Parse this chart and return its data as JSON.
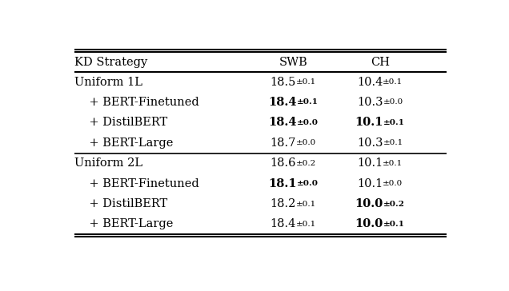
{
  "columns": [
    "KD Strategy",
    "SWB",
    "CH"
  ],
  "rows": [
    {
      "strategy": "Uniform 1L",
      "swb_main": "18.5",
      "swb_pm": "±0.1",
      "ch_main": "10.4",
      "ch_pm": "±0.1",
      "swb_bold_main": false,
      "swb_bold_pm": false,
      "ch_bold_main": false,
      "ch_bold_pm": false,
      "indent": false,
      "divider_before": false
    },
    {
      "strategy": "+ BERT-Finetuned",
      "swb_main": "18.4",
      "swb_pm": "±0.1",
      "ch_main": "10.3",
      "ch_pm": "±0.0",
      "swb_bold_main": true,
      "swb_bold_pm": true,
      "ch_bold_main": false,
      "ch_bold_pm": false,
      "indent": true,
      "divider_before": false
    },
    {
      "strategy": "+ DistilBERT",
      "swb_main": "18.4",
      "swb_pm": "±0.0",
      "ch_main": "10.1",
      "ch_pm": "±0.1",
      "swb_bold_main": true,
      "swb_bold_pm": true,
      "ch_bold_main": true,
      "ch_bold_pm": true,
      "indent": true,
      "divider_before": false
    },
    {
      "strategy": "+ BERT-Large",
      "swb_main": "18.7",
      "swb_pm": "±0.0",
      "ch_main": "10.3",
      "ch_pm": "±0.1",
      "swb_bold_main": false,
      "swb_bold_pm": false,
      "ch_bold_main": false,
      "ch_bold_pm": false,
      "indent": true,
      "divider_before": false
    },
    {
      "strategy": "Uniform 2L",
      "swb_main": "18.6",
      "swb_pm": "±0.2",
      "ch_main": "10.1",
      "ch_pm": "±0.1",
      "swb_bold_main": false,
      "swb_bold_pm": false,
      "ch_bold_main": false,
      "ch_bold_pm": false,
      "indent": false,
      "divider_before": true
    },
    {
      "strategy": "+ BERT-Finetuned",
      "swb_main": "18.1",
      "swb_pm": "±0.0",
      "ch_main": "10.1",
      "ch_pm": "±0.0",
      "swb_bold_main": true,
      "swb_bold_pm": true,
      "ch_bold_main": false,
      "ch_bold_pm": false,
      "indent": true,
      "divider_before": false
    },
    {
      "strategy": "+ DistilBERT",
      "swb_main": "18.2",
      "swb_pm": "±0.1",
      "ch_main": "10.0",
      "ch_pm": "±0.2",
      "swb_bold_main": false,
      "swb_bold_pm": false,
      "ch_bold_main": true,
      "ch_bold_pm": true,
      "indent": true,
      "divider_before": false
    },
    {
      "strategy": "+ BERT-Large",
      "swb_main": "18.4",
      "swb_pm": "±0.1",
      "ch_main": "10.0",
      "ch_pm": "±0.1",
      "swb_bold_main": false,
      "swb_bold_pm": false,
      "ch_bold_main": true,
      "ch_bold_pm": true,
      "indent": true,
      "divider_before": false
    }
  ],
  "font_size": 10.5,
  "pm_font_size": 7.5,
  "bg_color": "#ffffff",
  "text_color": "#000000"
}
